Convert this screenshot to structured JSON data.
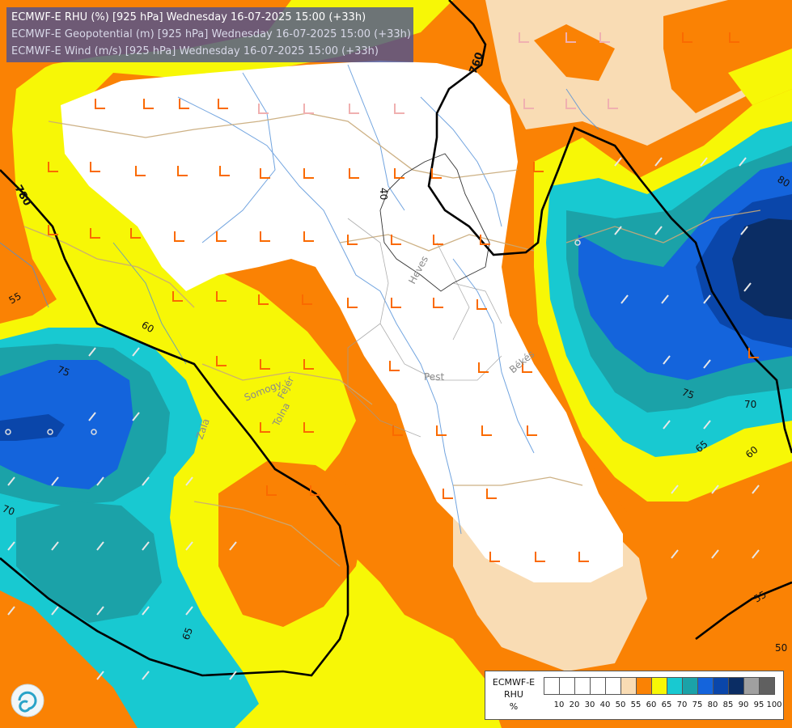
{
  "header": {
    "line1": "ECMWF-E RHU (%) [925 hPa] Wednesday 16-07-2025 15:00 (+33h)",
    "line2": "ECMWF-E Geopotential (m) [925 hPa] Wednesday 16-07-2025 15:00 (+33h)",
    "line3": "ECMWF-E Wind (m/s) [925 hPa] Wednesday 16-07-2025 15:00 (+33h)"
  },
  "legend": {
    "model": "ECMWF-E",
    "variable": "RHU",
    "unit": "%",
    "classes": [
      {
        "label": "10",
        "color": "#ffffff"
      },
      {
        "label": "20",
        "color": "#ffffff"
      },
      {
        "label": "30",
        "color": "#ffffff"
      },
      {
        "label": "40",
        "color": "#ffffff"
      },
      {
        "label": "50",
        "color": "#ffffff"
      },
      {
        "label": "55",
        "color": "#f9dcb4"
      },
      {
        "label": "60",
        "color": "#fa8204"
      },
      {
        "label": "65",
        "color": "#f7f706"
      },
      {
        "label": "70",
        "color": "#18c9d1"
      },
      {
        "label": "75",
        "color": "#1ba2a8"
      },
      {
        "label": "80",
        "color": "#1464dc"
      },
      {
        "label": "85",
        "color": "#0a46aa"
      },
      {
        "label": "90",
        "color": "#0b2d64"
      },
      {
        "label": "95",
        "color": "#a0a0a0"
      },
      {
        "label": "100",
        "color": "#606060"
      }
    ]
  },
  "contour_labels": {
    "geo_760": "760",
    "geo_780": "780",
    "rhu_40": "40",
    "rhu_50": "50",
    "rhu_55_w": "55",
    "rhu_55_se": "55",
    "rhu_60_w": "60",
    "rhu_60_e": "60",
    "rhu_65_sw": "65",
    "rhu_65_e": "65",
    "rhu_70_w": "70",
    "rhu_70_e": "70",
    "rhu_75_w": "75",
    "rhu_75_e": "75",
    "rhu_80_e": "80"
  },
  "places": {
    "heves": "Heves",
    "pest": "Pest",
    "bekes": "Békés",
    "somogy": "Somogy",
    "tolna": "Tolna",
    "fejer": "Fejér",
    "zala": "Zala"
  },
  "logo": "forecast-logo"
}
